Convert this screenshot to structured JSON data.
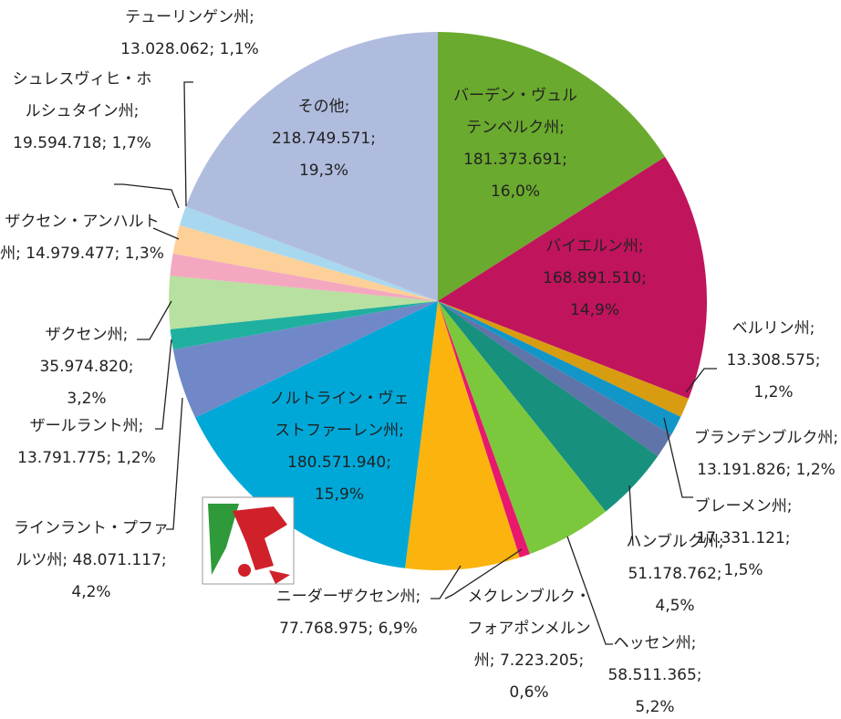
{
  "chart_data": {
    "type": "pie",
    "separator": ";",
    "categories": [
      "バーデン・ヴュルテンベルク州",
      "バイエルン州",
      "ベルリン州",
      "ブランデンブルク州",
      "ブレーメン州",
      "ハンブルク州",
      "ヘッセン州",
      "メクレンブルク・フォアポンメルン州",
      "ニーダーザクセン州",
      "ノルトライン・ヴェストファーレン州",
      "ラインラント・プファルツ州",
      "ザールラント州",
      "ザクセン州",
      "ザクセン・アンハルト州",
      "シュレスヴィヒ・ホルシュタイン州",
      "テューリンゲン州",
      "その他"
    ],
    "values": [
      181373691,
      168891510,
      13308575,
      13191826,
      17331121,
      51178762,
      58511365,
      7223205,
      77768975,
      180571940,
      48071117,
      13791775,
      35974820,
      14979477,
      19594718,
      13028062,
      218749571
    ],
    "value_labels": [
      "181.373.691",
      "168.891.510",
      "13.308.575",
      "13.191.826",
      "17.331.121",
      "51.178.762",
      "58.511.365",
      "7.223.205",
      "77.768.975",
      "180.571.940",
      "48.071.117",
      "13.791.775",
      "35.974.820",
      "14.979.477",
      "19.594.718",
      "13.028.062",
      "218.749.571"
    ],
    "percents": [
      16.0,
      14.9,
      1.2,
      1.2,
      1.5,
      4.5,
      5.2,
      0.6,
      6.9,
      15.9,
      4.2,
      1.2,
      3.2,
      1.3,
      1.7,
      1.1,
      19.3
    ],
    "percent_labels": [
      "16,0%",
      "14,9%",
      "1,2%",
      "1,2%",
      "1,5%",
      "4,5%",
      "5,2%",
      "0,6%",
      "6,9%",
      "15,9%",
      "4,2%",
      "1,2%",
      "3,2%",
      "1,3%",
      "1,7%",
      "1,1%",
      "19,3%"
    ],
    "colors": [
      "#6aaa2e",
      "#c0145c",
      "#d89c10",
      "#1296c8",
      "#5f74a8",
      "#17907e",
      "#7cc83c",
      "#e8186e",
      "#fbb40e",
      "#00a8d8",
      "#7088c8",
      "#20b0a0",
      "#b8e0a0",
      "#f4a8c0",
      "#fcd098",
      "#a8d8f0",
      "#b0bcde"
    ]
  }
}
